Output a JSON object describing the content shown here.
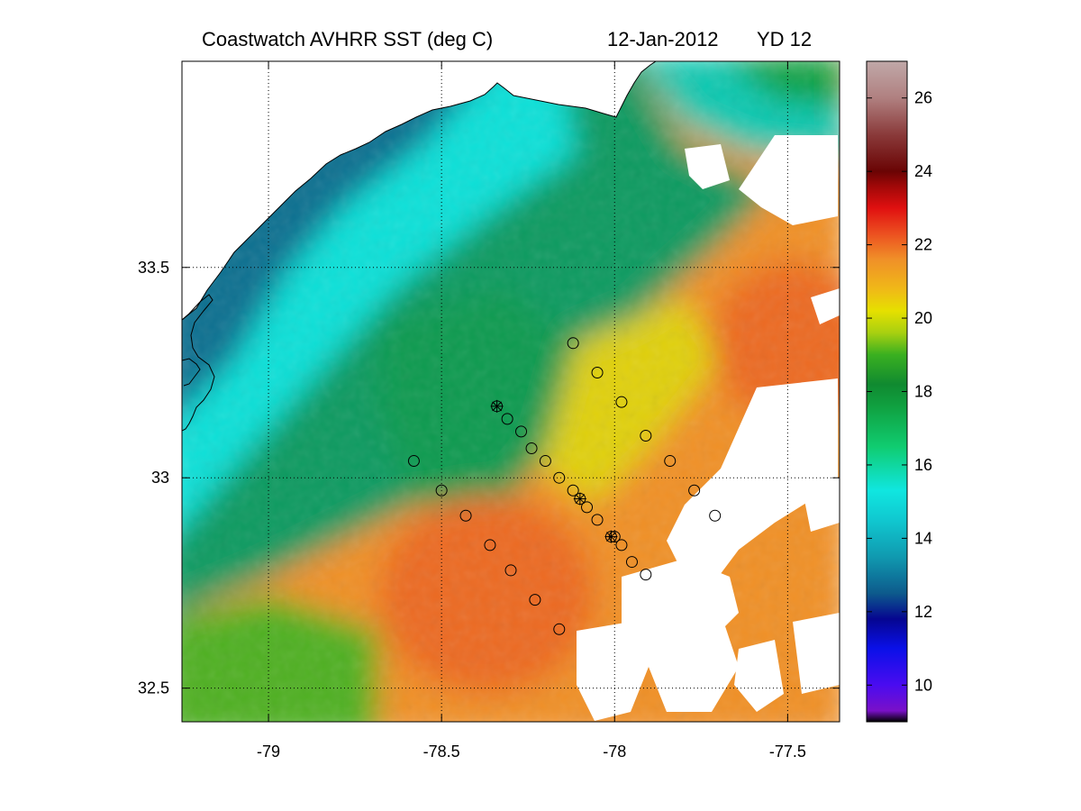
{
  "title": {
    "product": "Coastwatch   AVHRR   SST  (deg C)",
    "date": "12-Jan-2012",
    "yearday": "YD 12"
  },
  "map": {
    "projection": "lon-lat",
    "x_ticks": [
      {
        "value": -79,
        "label": "-79"
      },
      {
        "value": -78.5,
        "label": "-78.5"
      },
      {
        "value": -78,
        "label": "-78"
      },
      {
        "value": -77.5,
        "label": "-77.5"
      }
    ],
    "y_ticks": [
      {
        "value": 33.5,
        "label": "33.5"
      },
      {
        "value": 33,
        "label": "33"
      },
      {
        "value": 32.5,
        "label": "32.5"
      }
    ],
    "grid": "dotted",
    "land_color": "#ffffff",
    "no_data_color": "#ffffff"
  },
  "colorbar": {
    "range": [
      9,
      27
    ],
    "ticks": [
      {
        "value": 10,
        "label": "10"
      },
      {
        "value": 12,
        "label": "12"
      },
      {
        "value": 14,
        "label": "14"
      },
      {
        "value": 16,
        "label": "16"
      },
      {
        "value": 18,
        "label": "18"
      },
      {
        "value": 20,
        "label": "20"
      },
      {
        "value": 22,
        "label": "22"
      },
      {
        "value": 24,
        "label": "24"
      },
      {
        "value": 26,
        "label": "26"
      }
    ],
    "colors": [
      {
        "v": 9,
        "c": "#000000"
      },
      {
        "v": 9.3,
        "c": "#7a10c8"
      },
      {
        "v": 10,
        "c": "#4a0cf0"
      },
      {
        "v": 11,
        "c": "#0a10e8"
      },
      {
        "v": 11.8,
        "c": "#060690"
      },
      {
        "v": 12.5,
        "c": "#0d5a8c"
      },
      {
        "v": 13.5,
        "c": "#109ab0"
      },
      {
        "v": 14.5,
        "c": "#10c8d0"
      },
      {
        "v": 15.3,
        "c": "#10e6e0"
      },
      {
        "v": 16.5,
        "c": "#10cc70"
      },
      {
        "v": 17.6,
        "c": "#10a040"
      },
      {
        "v": 18.2,
        "c": "#108a30"
      },
      {
        "v": 19,
        "c": "#3ab020"
      },
      {
        "v": 19.6,
        "c": "#a8d010"
      },
      {
        "v": 20.2,
        "c": "#e6e000"
      },
      {
        "v": 20.8,
        "c": "#f0b818"
      },
      {
        "v": 21.6,
        "c": "#f09028"
      },
      {
        "v": 22.3,
        "c": "#ec5020"
      },
      {
        "v": 23,
        "c": "#e01010"
      },
      {
        "v": 23.6,
        "c": "#a00808"
      },
      {
        "v": 24,
        "c": "#6a0404"
      },
      {
        "v": 25,
        "c": "#8a3a3a"
      },
      {
        "v": 26,
        "c": "#b08080"
      },
      {
        "v": 27,
        "c": "#c0a8a8"
      }
    ]
  },
  "stations": {
    "circles": [
      [
        -78.12,
        33.32
      ],
      [
        -78.05,
        33.25
      ],
      [
        -77.98,
        33.18
      ],
      [
        -77.91,
        33.1
      ],
      [
        -77.84,
        33.04
      ],
      [
        -77.77,
        32.97
      ],
      [
        -77.71,
        32.91
      ],
      [
        -78.31,
        33.14
      ],
      [
        -78.27,
        33.11
      ],
      [
        -78.24,
        33.07
      ],
      [
        -78.2,
        33.04
      ],
      [
        -78.16,
        33.0
      ],
      [
        -78.12,
        32.97
      ],
      [
        -78.08,
        32.93
      ],
      [
        -78.05,
        32.9
      ],
      [
        -78.0,
        32.86
      ],
      [
        -77.98,
        32.84
      ],
      [
        -77.95,
        32.8
      ],
      [
        -77.91,
        32.77
      ],
      [
        -78.58,
        33.04
      ],
      [
        -78.5,
        32.97
      ],
      [
        -78.43,
        32.91
      ],
      [
        -78.36,
        32.84
      ],
      [
        -78.3,
        32.78
      ],
      [
        -78.23,
        32.71
      ],
      [
        -78.16,
        32.64
      ]
    ],
    "crosses": [
      [
        -78.34,
        33.17
      ],
      [
        -78.1,
        32.95
      ],
      [
        -78.01,
        32.86
      ]
    ]
  }
}
